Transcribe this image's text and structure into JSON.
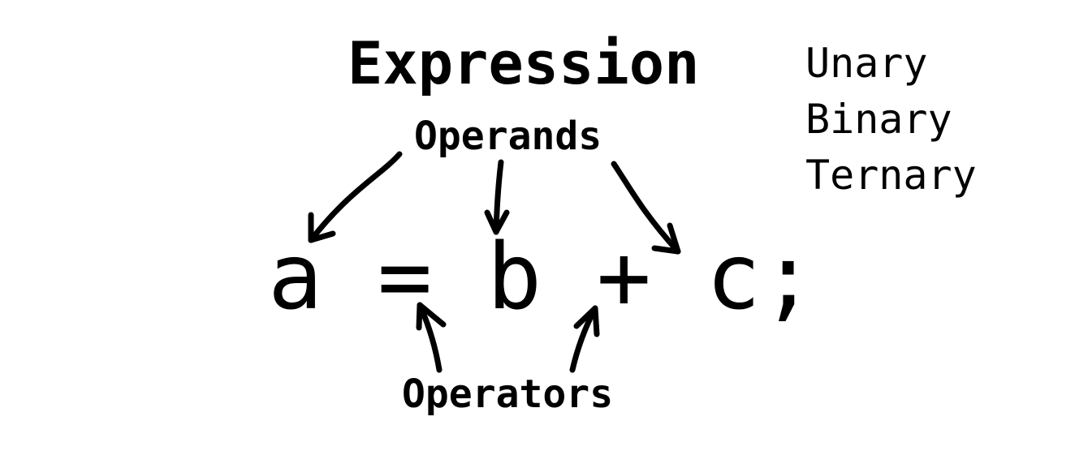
{
  "diagram": {
    "title": "Expression",
    "operands_label": "Operands",
    "operators_label": "Operators",
    "expression": {
      "operand_a": "a",
      "operator_assign": "=",
      "operand_b": "b",
      "operator_plus": "+",
      "operand_c": "c",
      "terminator": ";"
    },
    "operator_types": [
      "Unary",
      "Binary",
      "Ternary"
    ]
  }
}
